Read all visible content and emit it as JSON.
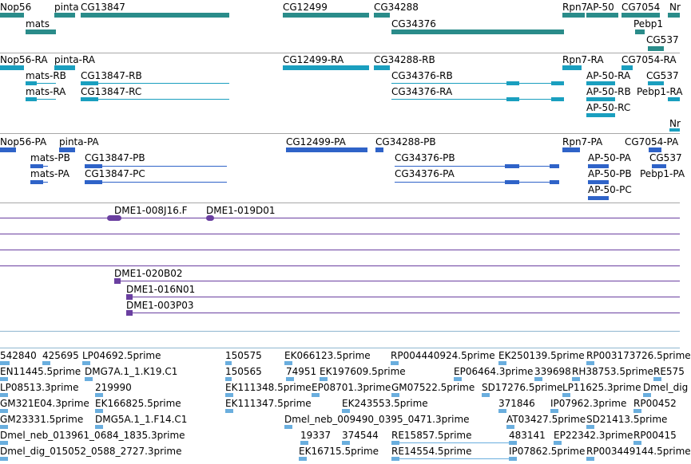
{
  "colors": {
    "gene": "#2a8c8a",
    "transcript": "#1a9fbf",
    "protein": "#2f63c8",
    "clone": "#6a3fa0",
    "est": "#6aaede",
    "separator": "#a8a8a8",
    "separator_blue": "#8fb6cf"
  },
  "tracks": {
    "genes": {
      "labels": [
        "Nop56",
        "pinta",
        "CG13847",
        "CG12499",
        "CG34288",
        "Rpn7",
        "AP-50",
        "CG7054",
        "Nr",
        "mats",
        "CG34376",
        "Pebp1",
        "CG537"
      ]
    },
    "transcripts": {
      "labels": [
        "Nop56-RA",
        "pinta-RA",
        "CG12499-RA",
        "CG34288-RB",
        "Rpn7-RA",
        "CG7054-RA",
        "mats-RB",
        "CG13847-RB",
        "CG34376-RB",
        "AP-50-RA",
        "CG537",
        "mats-RA",
        "CG13847-RC",
        "CG34376-RA",
        "AP-50-RB",
        "Pebp1-RA",
        "AP-50-RC",
        "Nr"
      ]
    },
    "proteins": {
      "labels": [
        "Nop56-PA",
        "pinta-PA",
        "CG12499-PA",
        "CG34288-PB",
        "Rpn7-PA",
        "CG7054-PA",
        "mats-PB",
        "CG13847-PB",
        "CG34376-PB",
        "AP-50-PA",
        "CG537",
        "mats-PA",
        "CG13847-PC",
        "CG34376-PA",
        "AP-50-PB",
        "Pebp1-PA",
        "AP-50-PC"
      ]
    },
    "clones": {
      "labels": [
        "DME1-008J16.F",
        "DME1-019D01",
        "DME1-020B02",
        "DME1-016N01",
        "DME1-003P03"
      ]
    },
    "ests": {
      "labels": [
        "542840",
        "425695",
        "LP04692.5prime",
        "150575",
        "EK066123.5prime",
        "RP004440924.5prime",
        "EK250139.5prime",
        "RP003173726.5prime",
        "EN11445.5prime",
        "DMG7A.1_1.K19.C1",
        "150565",
        "74951",
        "EK197609.5prime",
        "EP06464.3prime",
        "339698",
        "RH38753.5prime",
        "RE575",
        "LP08513.3prime",
        "219990",
        "EK111348.5prime",
        "EP08701.3prime",
        "GM07522.5prime",
        "SD17276.5prime",
        "LP11625.3prime",
        "Dmel_dig",
        "GM321E04.3prime",
        "EK166825.5prime",
        "EK111347.5prime",
        "EK243553.5prime",
        "371846",
        "IP07962.3prime",
        "RP00452",
        "GM23331.5prime",
        "DMG5A.1_1.F14.C1",
        "Dmel_neb_009490_0395_0471.3prime",
        "AT03427.5prime",
        "SD21413.5prime",
        "Dmel_neb_013961_0684_1835.3prime",
        "19337",
        "374544",
        "RE15857.5prime",
        "483141",
        "EP22342.3prime",
        "RP00415",
        "Dmel_dig_015052_0588_2727.3prime",
        "EK16715.5prime",
        "RE14554.5prime",
        "IP07862.5prime",
        "RP003449144.5prime"
      ]
    }
  }
}
